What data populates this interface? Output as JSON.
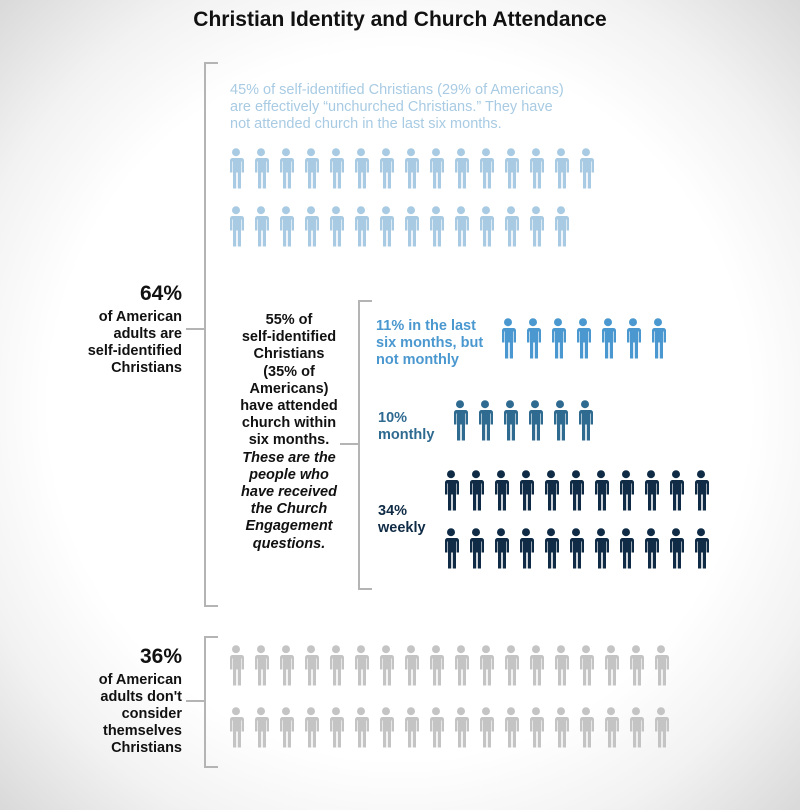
{
  "title": "Christian Identity and Church Attendance",
  "christians": {
    "pct": "64%",
    "label_lines": [
      "of American",
      "adults are",
      "self-identified",
      "Christians"
    ]
  },
  "unchurched_note_lines": [
    "45% of self-identified Christians (29% of Americans)",
    "are effectively “unchurched Christians.” They have",
    "not attended church in the last six months."
  ],
  "attended_text": {
    "lines": [
      "55% of",
      "self-identified",
      "Christians",
      "(35% of",
      "Americans)",
      "have attended",
      "church within",
      "six months."
    ],
    "italic_lines": [
      "These are the",
      "people who",
      "have received",
      "the Church",
      "Engagement",
      "questions."
    ]
  },
  "non_christians": {
    "pct": "36%",
    "label_lines": [
      "of American",
      "adults don't",
      "consider",
      "themselves",
      "Christians"
    ]
  },
  "chart_data": {
    "type": "pictogram",
    "title": "Christian Identity and Church Attendance",
    "series": [
      {
        "name": "45% of self-identified Christians (29% of Americans) are effectively “unchurched Christians.” They have not attended church in the last six months.",
        "icons": 29,
        "rows": [
          15,
          14
        ],
        "color": "#a8cbe3"
      },
      {
        "name": "11% in the last six months, but not monthly",
        "icons": 7,
        "rows": [
          7
        ],
        "color": "#4a98cf"
      },
      {
        "name": "10% monthly",
        "icons": 6,
        "rows": [
          6
        ],
        "color": "#2f6a90"
      },
      {
        "name": "34% weekly",
        "icons": 22,
        "rows": [
          11,
          11
        ],
        "color": "#0f2b45"
      },
      {
        "name": "36% of American adults don't consider themselves Christians",
        "icons": 36,
        "rows": [
          18,
          18
        ],
        "color": "#c4c4c4"
      }
    ]
  },
  "sub_groups": [
    {
      "lines": [
        "11% in the last",
        "six months, but",
        "not monthly"
      ],
      "color": "#4a98cf"
    },
    {
      "lines": [
        "10%",
        "monthly"
      ],
      "color": "#2f6a90"
    },
    {
      "lines": [
        "34%",
        "weekly"
      ],
      "color": "#0f2b45"
    }
  ]
}
